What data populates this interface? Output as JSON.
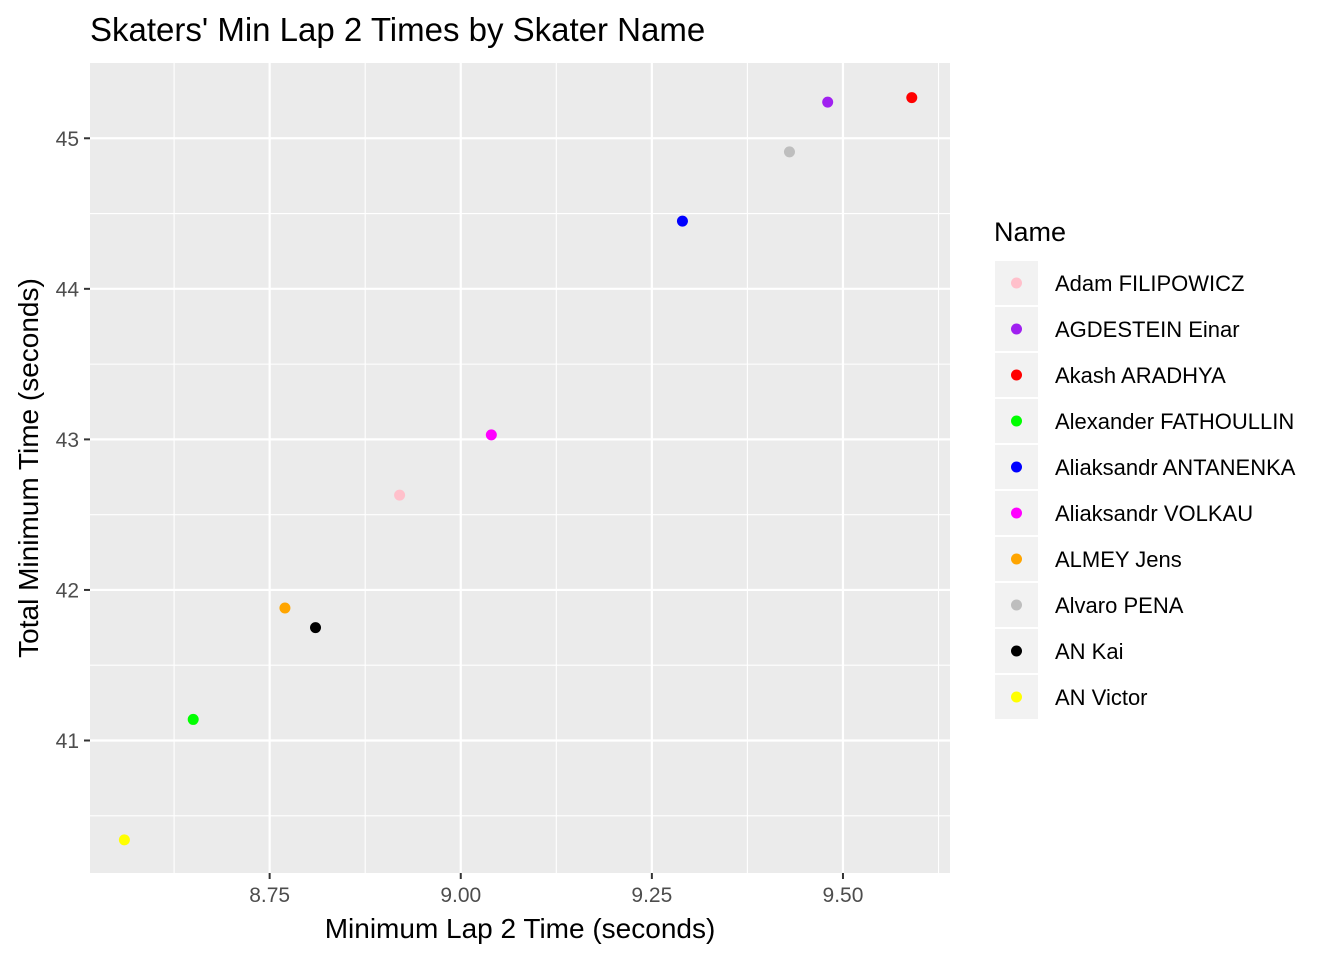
{
  "chart_data": {
    "type": "scatter",
    "title": "Skaters' Min Lap 2 Times by Skater Name",
    "xlabel": "Minimum Lap 2 Time (seconds)",
    "ylabel": "Total Minimum Time (seconds)",
    "xlim": [
      8.515,
      9.64
    ],
    "ylim": [
      40.12,
      45.5
    ],
    "x_ticks": [
      8.75,
      9.0,
      9.25,
      9.5
    ],
    "x_tick_labels": [
      "8.75",
      "9.00",
      "9.25",
      "9.50"
    ],
    "y_ticks": [
      41,
      42,
      43,
      44,
      45
    ],
    "y_tick_labels": [
      "41",
      "42",
      "43",
      "44",
      "45"
    ],
    "grid": true,
    "panel_background": "#ebebeb",
    "legend": {
      "title": "Name",
      "position": "right"
    },
    "series": [
      {
        "name": "Adam FILIPOWICZ",
        "color": "#ffc0cb",
        "x": 8.92,
        "y": 42.63
      },
      {
        "name": "AGDESTEIN Einar",
        "color": "#a020f0",
        "x": 9.48,
        "y": 45.24
      },
      {
        "name": "Akash ARADHYA",
        "color": "#ff0000",
        "x": 9.59,
        "y": 45.27
      },
      {
        "name": "Alexander FATHOULLIN",
        "color": "#00ff00",
        "x": 8.65,
        "y": 41.14
      },
      {
        "name": "Aliaksandr ANTANENKA",
        "color": "#0000ff",
        "x": 9.29,
        "y": 44.45
      },
      {
        "name": "Aliaksandr VOLKAU",
        "color": "#ff00ff",
        "x": 9.04,
        "y": 43.03
      },
      {
        "name": "ALMEY Jens",
        "color": "#ffa500",
        "x": 8.77,
        "y": 41.88
      },
      {
        "name": "Alvaro PENA",
        "color": "#bebebe",
        "x": 9.43,
        "y": 44.91
      },
      {
        "name": "AN Kai",
        "color": "#000000",
        "x": 8.81,
        "y": 41.75
      },
      {
        "name": "AN Victor",
        "color": "#ffff00",
        "x": 8.56,
        "y": 40.34
      }
    ]
  }
}
